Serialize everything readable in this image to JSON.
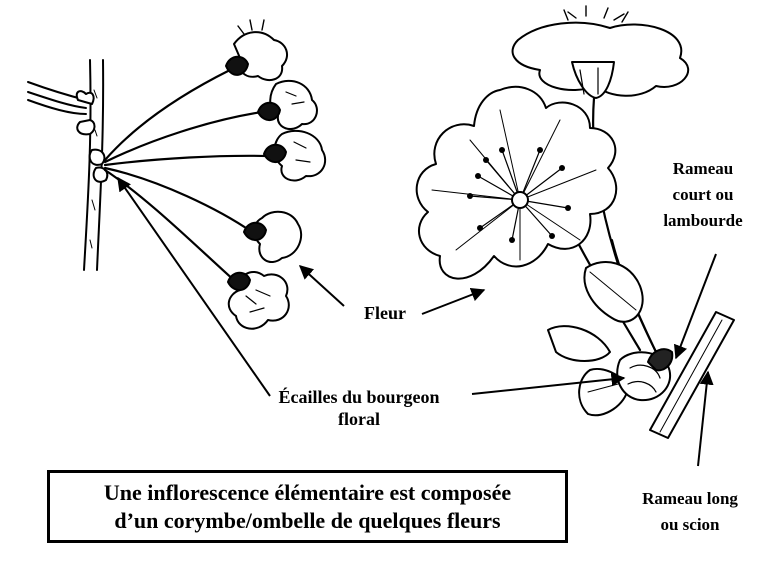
{
  "labels": {
    "fleur": "Fleur",
    "ecailles": [
      "Écailles du bourgeon",
      "floral"
    ],
    "rameau_court": [
      "Rameau",
      "court ou",
      "lambourde"
    ],
    "rameau_long": [
      "Rameau long",
      "ou scion"
    ]
  },
  "caption": {
    "line1": "Une inflorescence élémentaire est composée",
    "line2": "d’un corymbe/ombelle de quelques fleurs"
  },
  "colors": {
    "ink": "#000000",
    "background": "#ffffff"
  }
}
